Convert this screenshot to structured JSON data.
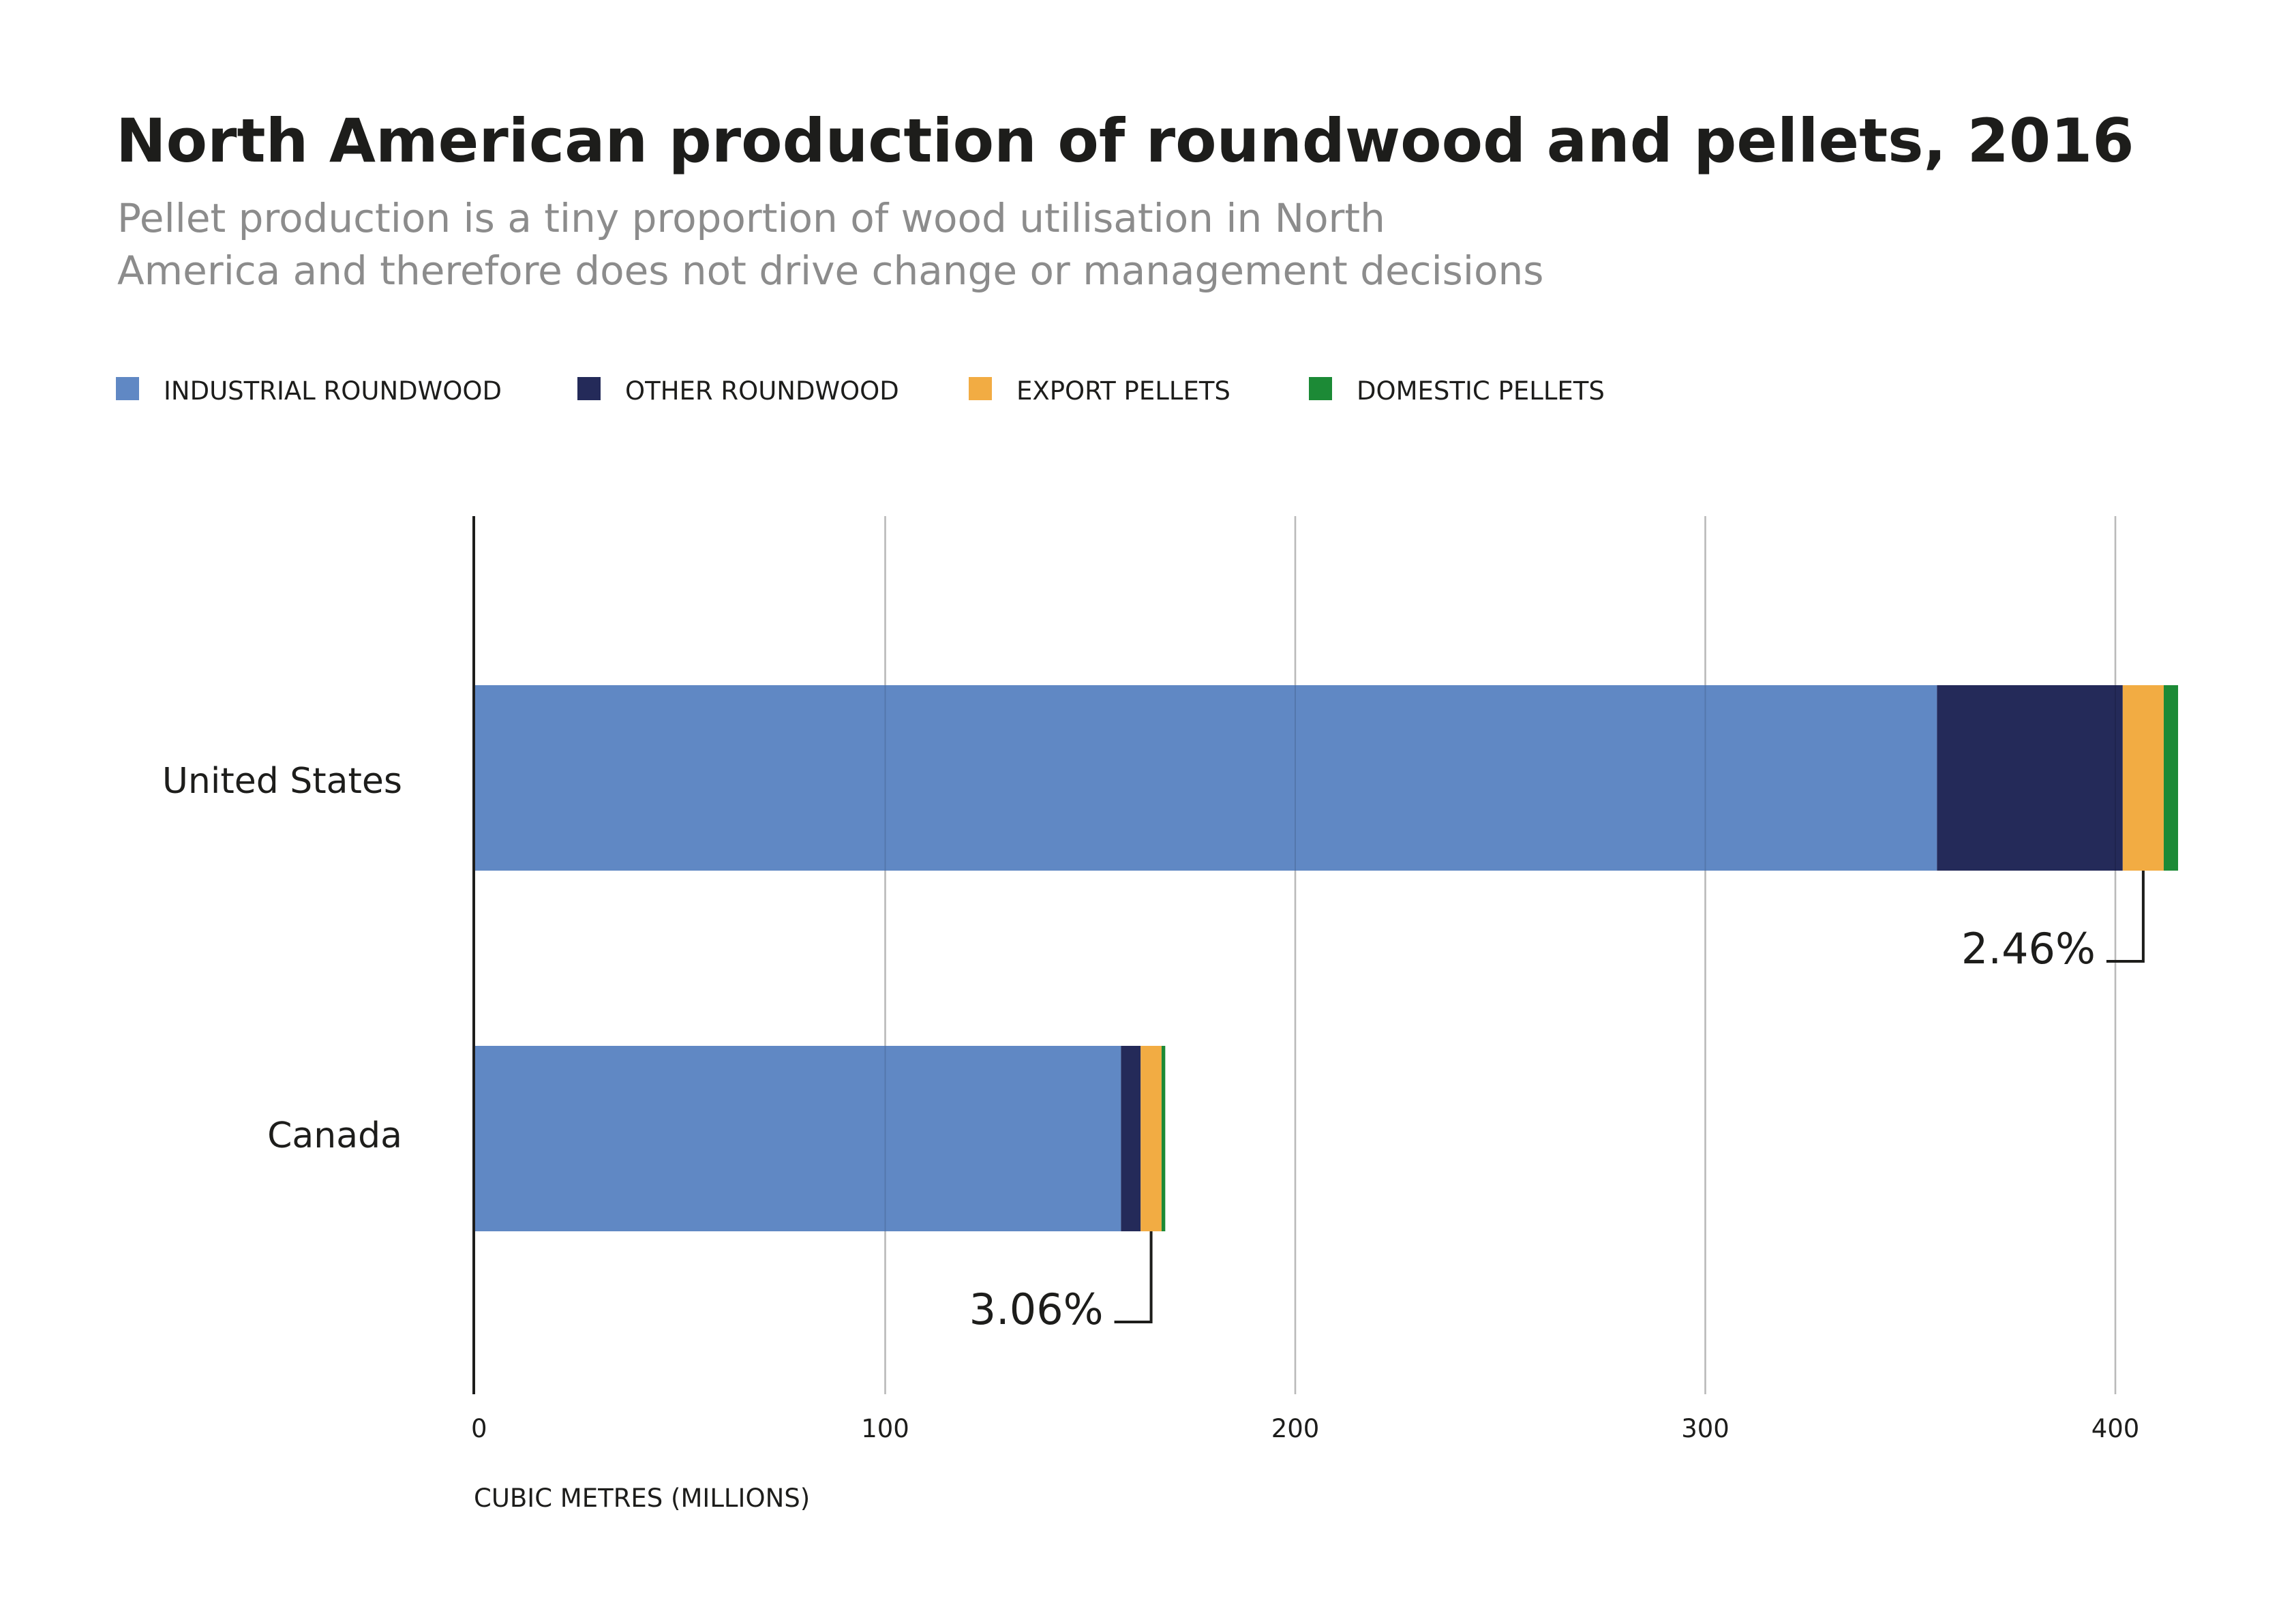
{
  "chart_data": {
    "type": "bar",
    "orientation": "horizontal",
    "stacked": true,
    "title": "North American production of roundwood and pellets, 2016",
    "subtitle": [
      "Pellet production is a tiny proportion of wood utilisation in North",
      "America and therefore does not drive change or management decisions"
    ],
    "categories": [
      "United States",
      "Canada"
    ],
    "series": [
      {
        "name": "INDUSTRIAL ROUNDWOOD",
        "color": "#6088c4",
        "values": [
          356.5,
          157.5
        ]
      },
      {
        "name": "OTHER ROUNDWOOD",
        "color": "#242a59",
        "values": [
          45.3,
          4.8
        ]
      },
      {
        "name": "EXPORT PELLETS",
        "color": "#f2ac43",
        "values": [
          10.0,
          5.1
        ]
      },
      {
        "name": "DOMESTIC PELLETS",
        "color": "#1c8a36",
        "values": [
          3.5,
          0.9
        ]
      }
    ],
    "annotations": [
      {
        "category": "United States",
        "series": "EXPORT PELLETS",
        "text": "2.46%"
      },
      {
        "category": "Canada",
        "series": "EXPORT PELLETS",
        "text": "3.06%"
      }
    ],
    "xlabel": "CUBIC METRES (MILLIONS)",
    "ylabel": "",
    "xlim": [
      0,
      415
    ],
    "xticks": [
      0,
      100,
      200,
      300,
      400
    ],
    "grid": true,
    "legend_position": "top-left"
  }
}
